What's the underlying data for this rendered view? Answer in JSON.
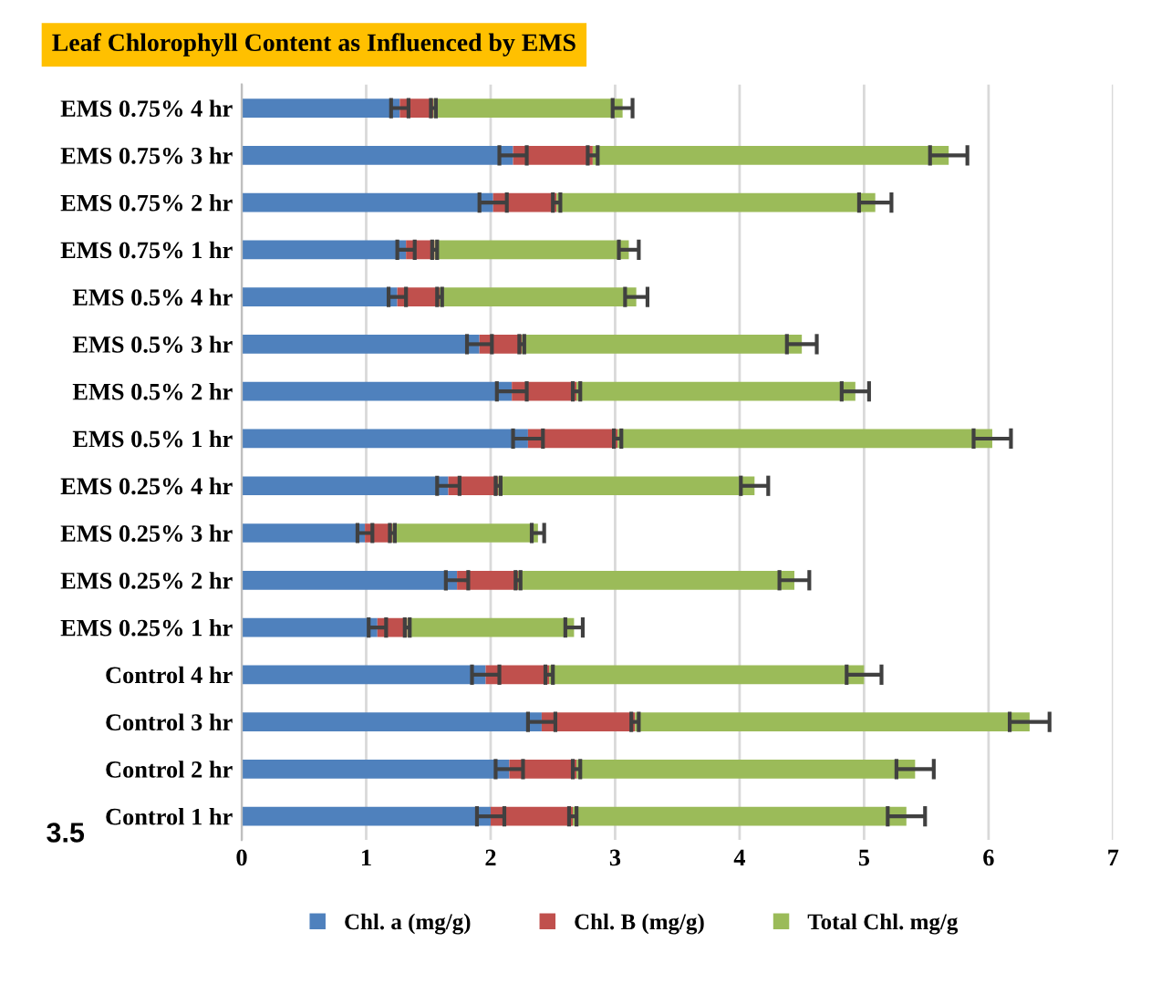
{
  "chart_data": {
    "type": "bar",
    "orientation": "horizontal",
    "stacked": true,
    "title": "Leaf Chlorophyll Content as Influenced by EMS",
    "categories": [
      "EMS 0.75% 4 hr",
      "EMS 0.75% 3 hr",
      "EMS 0.75% 2 hr",
      "EMS 0.75% 1 hr",
      "EMS 0.5% 4 hr",
      "EMS 0.5% 3 hr",
      "EMS 0.5% 2 hr",
      "EMS 0.5% 1 hr",
      "EMS 0.25% 4 hr",
      "EMS 0.25% 3 hr",
      "EMS 0.25% 2 hr",
      "EMS 0.25% 1 hr",
      "Control 4 hr",
      "Control 3 hr",
      "Control 2 hr",
      "Control 1 hr"
    ],
    "series": [
      {
        "name": "Chl. a (mg/g)",
        "color": "#4f81bd",
        "values": [
          1.27,
          2.18,
          2.02,
          1.32,
          1.25,
          1.91,
          2.17,
          2.3,
          1.66,
          0.99,
          1.73,
          1.09,
          1.96,
          2.41,
          2.15,
          2.0
        ],
        "errors": [
          0.07,
          0.11,
          0.11,
          0.07,
          0.07,
          0.1,
          0.12,
          0.12,
          0.09,
          0.06,
          0.09,
          0.07,
          0.11,
          0.11,
          0.11,
          0.11
        ]
      },
      {
        "name": "Chl. B (mg/g)",
        "color": "#c0504d",
        "values": [
          0.27,
          0.64,
          0.51,
          0.23,
          0.34,
          0.34,
          0.52,
          0.72,
          0.4,
          0.22,
          0.49,
          0.24,
          0.51,
          0.75,
          0.54,
          0.66
        ],
        "errors": [
          0.02,
          0.04,
          0.03,
          0.02,
          0.02,
          0.02,
          0.03,
          0.03,
          0.02,
          0.02,
          0.02,
          0.02,
          0.03,
          0.03,
          0.03,
          0.03
        ]
      },
      {
        "name": "Total Chl. mg/g",
        "color": "#9bbb59",
        "values": [
          1.52,
          2.86,
          2.56,
          1.56,
          1.58,
          2.25,
          2.24,
          3.01,
          2.06,
          1.17,
          2.22,
          1.34,
          2.53,
          3.17,
          2.72,
          2.68
        ],
        "errors": [
          0.08,
          0.15,
          0.13,
          0.08,
          0.09,
          0.12,
          0.11,
          0.15,
          0.11,
          0.05,
          0.12,
          0.07,
          0.14,
          0.16,
          0.15,
          0.15
        ]
      }
    ],
    "xlim": [
      0,
      7
    ],
    "xticks": [
      0,
      1,
      2,
      3,
      4,
      5,
      6,
      7
    ],
    "grid": "x",
    "legend": "bottom",
    "annotations": [
      "3.5"
    ]
  }
}
